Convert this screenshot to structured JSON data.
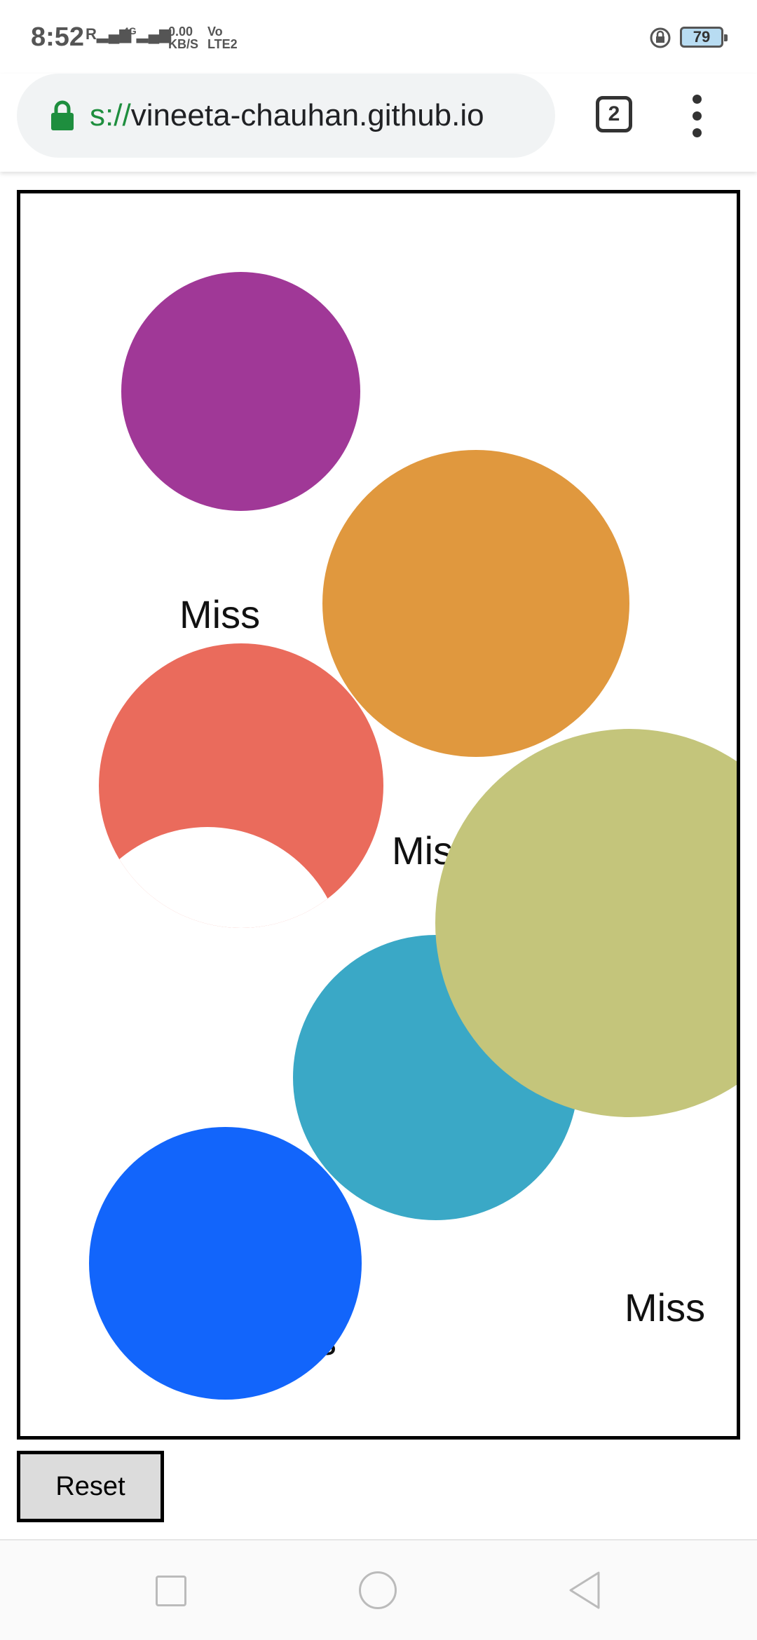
{
  "status_bar": {
    "time": "8:52",
    "signal_1": "R",
    "network_speed_value": "0.00",
    "network_speed_unit": "KB/S",
    "network_type": "4G",
    "volte_top": "Vo",
    "volte_bottom": "LTE2",
    "battery": "79"
  },
  "browser": {
    "url_scheme": "s://",
    "url_host": "vineeta-chauhan.github.io",
    "tab_count": "2"
  },
  "game": {
    "miss_labels": [
      "Miss",
      "Mis",
      "ss",
      "Miss"
    ],
    "circles": [
      {
        "color": "#a03897",
        "name": "purple"
      },
      {
        "color": "#e0983e",
        "name": "orange"
      },
      {
        "color": "#ea6b5c",
        "name": "red"
      },
      {
        "color": "#c4c57b",
        "name": "olive"
      },
      {
        "color": "#3aa8c6",
        "name": "teal"
      },
      {
        "color": "#1265fb",
        "name": "blue"
      }
    ]
  },
  "controls": {
    "reset_label": "Reset"
  },
  "colors": {
    "border": "#000000",
    "button_bg": "#dcdcdc",
    "url_bar_bg": "#f1f3f4",
    "secure_green": "#1e8e3e"
  }
}
